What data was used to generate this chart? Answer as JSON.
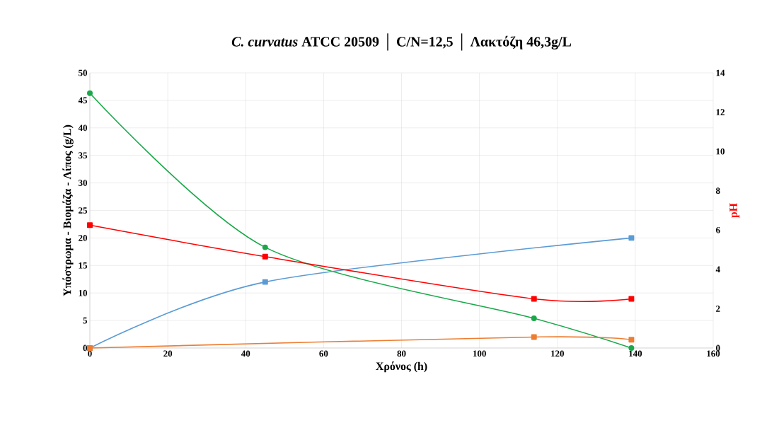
{
  "chart_data": {
    "type": "line",
    "title": "*C. curvatus* ATCC 20509 │ C/N=12,5 │ Λακτόζη 46,3g/L",
    "xlabel": "Χρόνος (h)",
    "ylabel": "Υπόστρωμα - Βιομάζα - Λίπος (g/L)",
    "y2label": "pH",
    "xlim": [
      0,
      160
    ],
    "xticks": [
      0,
      20,
      40,
      60,
      80,
      100,
      120,
      140,
      160
    ],
    "ylim": [
      0,
      50
    ],
    "yticks": [
      0,
      5,
      10,
      15,
      20,
      25,
      30,
      35,
      40,
      45,
      50
    ],
    "y2lim": [
      0,
      14
    ],
    "y2ticks": [
      0,
      2,
      4,
      6,
      8,
      10,
      12,
      14
    ],
    "grid": true,
    "series": [
      {
        "color": "#1aa84a",
        "marker": "circle",
        "x": [
          0,
          45,
          114,
          139
        ],
        "values": [
          46.3,
          18.3,
          5.4,
          0
        ]
      },
      {
        "color": "#5b9bd5",
        "marker": "square",
        "x": [
          0,
          45,
          139
        ],
        "values": [
          0,
          12,
          20
        ]
      },
      {
        "color": "#ed7d31",
        "marker": "square",
        "x": [
          0,
          114,
          139
        ],
        "values": [
          0,
          2,
          1.5
        ]
      },
      {
        "color": "#ff0000",
        "marker": "square",
        "axis": "y2",
        "x": [
          0,
          45,
          114,
          139
        ],
        "values": [
          6.25,
          4.65,
          2.5,
          2.5
        ]
      }
    ]
  }
}
